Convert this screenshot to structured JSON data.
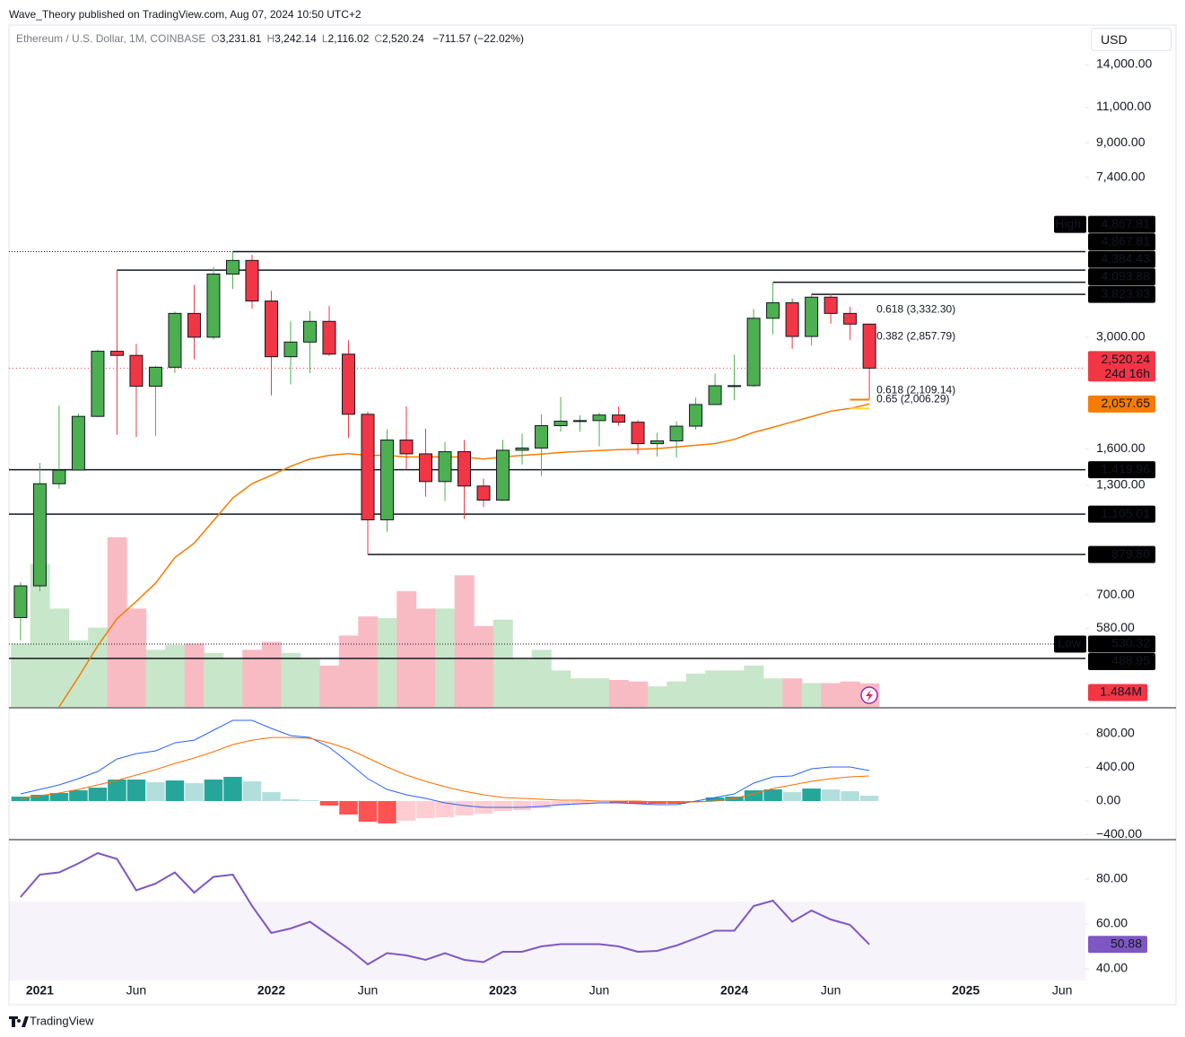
{
  "header": {
    "publisher": "Wave_Theory published on TradingView.com, Aug 07, 2024 10:50 UTC+2",
    "symbol": "Ethereum / U.S. Dollar, 1M, COINBASE",
    "ohlc": [
      {
        "key": "O",
        "value": "3,231.81"
      },
      {
        "key": "H",
        "value": "3,242.14"
      },
      {
        "key": "L",
        "value": "2,116.02"
      },
      {
        "key": "C",
        "value": "2,520.24"
      }
    ],
    "change": "−711.57 (−22.02%)",
    "currency": "USD",
    "brand": "TradingView"
  },
  "chart_data": [
    {
      "type": "candlestick",
      "log_scale": true,
      "grid": false,
      "xlim": [
        -0.6,
        55.2
      ],
      "xticks": [
        {
          "value": 1,
          "label": "2021"
        },
        {
          "value": 6,
          "label": "Jun"
        },
        {
          "value": 13,
          "label": "2022"
        },
        {
          "value": 18,
          "label": "Jun"
        },
        {
          "value": 25,
          "label": "2023"
        },
        {
          "value": 30,
          "label": "Jun"
        },
        {
          "value": 37,
          "label": "2024"
        },
        {
          "value": 42,
          "label": "Jun"
        },
        {
          "value": 49,
          "label": "2025"
        },
        {
          "value": 54,
          "label": "Jun"
        }
      ],
      "ylim": [
        372,
        17490
      ],
      "yticks": [
        {
          "value": 14000,
          "label": "14,000.00"
        },
        {
          "value": 11000,
          "label": "11,000.00"
        },
        {
          "value": 9000,
          "label": "9,000.00"
        },
        {
          "value": 7400,
          "label": "7,400.00"
        },
        {
          "value": 3000,
          "label": "3,000.00"
        },
        {
          "value": 1600,
          "label": "1,600.00"
        },
        {
          "value": 1300,
          "label": "1,300.00"
        },
        {
          "value": 700,
          "label": "700.00"
        },
        {
          "value": 580,
          "label": "580.00"
        }
      ],
      "up_color": "#4caf50",
      "down_color": "#f23645",
      "open": [
        616,
        737,
        1312,
        1417,
        1919,
        2772,
        2708,
        2275,
        2533,
        3433,
        3001,
        4288,
        4630,
        3682,
        2688,
        2920,
        3282,
        2727,
        1942,
        1070,
        1679,
        1553,
        1328,
        1572,
        1295,
        1196,
        1585,
        1605,
        1821,
        1868,
        1874,
        1934,
        1857,
        1645,
        1671,
        1816,
        2052,
        2282,
        2283,
        3340,
        3645,
        3014,
        3763,
        3433,
        3231.81
      ],
      "high": [
        752,
        1476,
        2042,
        1950,
        2798,
        4384.43,
        2890,
        2553,
        3470,
        4030,
        4460,
        4867.81,
        4780,
        3900,
        3285,
        3480,
        3580,
        2950,
        1972,
        1785,
        2030,
        1790,
        1660,
        1680,
        1350,
        1680,
        1740,
        1945,
        2140,
        1930,
        1960,
        2030,
        1880,
        1750,
        1865,
        2135,
        2445,
        2720,
        3520,
        4093.88,
        3730,
        3823.83,
        3830,
        3565,
        3242.14
      ],
      "low": [
        541,
        714,
        1275,
        1540,
        1911,
        1730,
        1707,
        1720,
        2452,
        2650,
        2960,
        3940,
        3530,
        2160,
        2300,
        2450,
        2700,
        1700,
        879.8,
        1000,
        1420,
        1220,
        1190,
        1075,
        1150,
        1190,
        1460,
        1370,
        1760,
        1760,
        1620,
        1820,
        1550,
        1530,
        1520,
        1780,
        2050,
        2100,
        2265,
        3050,
        2810,
        2860,
        3240,
        2955,
        2116.02
      ],
      "close": [
        737,
        1312,
        1417,
        1919,
        2772,
        2708,
        2275,
        2533,
        3433,
        3001,
        4288,
        4630,
        3682,
        2688,
        2920,
        3282,
        2727,
        1942,
        1070,
        1679,
        1553,
        1328,
        1572,
        1295,
        1196,
        1585,
        1605,
        1821,
        1868,
        1874,
        1934,
        1857,
        1645,
        1671,
        1816,
        2052,
        2282,
        2283,
        3340,
        3645,
        3014,
        3763,
        3433,
        3231.81,
        2520.24
      ],
      "ma": {
        "color": "#f57c00",
        "values": [
          null,
          null,
          372,
          440,
          525,
          612,
          675,
          748,
          864,
          938,
          1065,
          1210,
          1312,
          1376,
          1448,
          1508,
          1540,
          1555,
          1540,
          1540,
          1526,
          1526,
          1526,
          1526,
          1508,
          1526,
          1540,
          1550,
          1565,
          1575,
          1583,
          1590,
          1595,
          1600,
          1615,
          1630,
          1646,
          1685,
          1753,
          1804,
          1860,
          1916,
          1977,
          2007,
          2057.65
        ],
        "last_label": "2,057.65"
      },
      "volume": {
        "ylim": [
          0,
          43
        ],
        "up_color": "#c8e6c9",
        "down_color": "#f8bbc4",
        "values": [
          4.0,
          9.0,
          6.2,
          4.2,
          5.0,
          10.7,
          6.2,
          3.6,
          3.9,
          4.0,
          3.4,
          3.0,
          3.6,
          4.1,
          3.4,
          3.0,
          2.6,
          4.5,
          5.7,
          5.6,
          7.3,
          6.2,
          6.2,
          8.3,
          5.1,
          5.5,
          3.0,
          3.6,
          2.3,
          1.8,
          1.8,
          1.7,
          1.6,
          1.3,
          1.6,
          2.1,
          2.3,
          2.3,
          2.6,
          1.8,
          1.8,
          1.5,
          1.5,
          1.6,
          1.484
        ],
        "last_label": "1.484M"
      },
      "last": {
        "value": 2520.24,
        "label": "2,520.24",
        "countdown": "24d 16h",
        "color": "#f23645"
      },
      "high_mark": {
        "text": "High",
        "value": 4867.81,
        "label": "4,867.81"
      },
      "low_mark": {
        "text": "Low",
        "value": 530.32,
        "label": "530.32"
      },
      "levels": [
        {
          "value": 4867.81,
          "label": "4,867.81",
          "full": false
        },
        {
          "value": 4384.43,
          "label": "4,384.43",
          "full": false
        },
        {
          "value": 4093.88,
          "label": "4,093.88",
          "full": false
        },
        {
          "value": 3823.83,
          "label": "3,823.83",
          "full": false
        },
        {
          "value": 1419.96,
          "label": "1,419.96",
          "full": true
        },
        {
          "value": 1105.01,
          "label": "1,105.01",
          "full": true
        },
        {
          "value": 879.8,
          "label": "879.80",
          "full": false
        },
        {
          "value": 488.95,
          "label": "488.95",
          "full": true
        }
      ],
      "fib": [
        {
          "text": "0.618 (3,332.30)",
          "value": 3332.3,
          "color": "#f5a623",
          "line": false
        },
        {
          "text": "0.382 (2,857.79)",
          "value": 2857.79,
          "color": "#66bb6a",
          "line": false
        },
        {
          "text": "0.618 (2,109.14)",
          "value": 2109.14,
          "color": "#f57c00",
          "line": true
        },
        {
          "text": "0.65 (2,006.29)",
          "value": 2006.29,
          "color": "#fdd835",
          "line": true
        }
      ]
    },
    {
      "type": "macd",
      "ylim": [
        -448,
        1099
      ],
      "yticks": [
        {
          "value": 800,
          "label": "800.00"
        },
        {
          "value": 400,
          "label": "400.00"
        },
        {
          "value": 0,
          "label": "0.00"
        },
        {
          "value": -400,
          "label": "−400.00"
        }
      ],
      "macd_color": "#2962ff",
      "signal_color": "#ff6d00",
      "macd": [
        85,
        139,
        192,
        267,
        352,
        501,
        565,
        597,
        693,
        725,
        843,
        960,
        960,
        864,
        779,
        757,
        640,
        459,
        267,
        139,
        75,
        32,
        -21,
        -53,
        -75,
        -75,
        -75,
        -64,
        -43,
        -32,
        -21,
        -21,
        -32,
        -43,
        -43,
        0,
        43,
        85,
        213,
        288,
        299,
        384,
        405,
        405,
        363
      ],
      "signal": [
        32,
        64,
        96,
        139,
        192,
        245,
        309,
        373,
        448,
        512,
        587,
        672,
        725,
        757,
        757,
        747,
        693,
        619,
        512,
        405,
        309,
        235,
        171,
        117,
        75,
        43,
        32,
        21,
        11,
        11,
        0,
        0,
        0,
        -11,
        -11,
        -11,
        0,
        32,
        85,
        149,
        192,
        235,
        267,
        288,
        299
      ],
      "histogram": [
        53,
        75,
        96,
        128,
        160,
        256,
        256,
        224,
        245,
        213,
        256,
        288,
        235,
        107,
        22,
        10,
        -53,
        -160,
        -245,
        -266,
        -234,
        -203,
        -192,
        -170,
        -150,
        -118,
        -107,
        -85,
        -54,
        -43,
        -21,
        -21,
        -32,
        -32,
        -32,
        0,
        43,
        53,
        128,
        139,
        107,
        149,
        138,
        117,
        64
      ]
    },
    {
      "type": "rsi",
      "ylim": [
        34.8,
        97.2
      ],
      "yticks": [
        {
          "value": 80,
          "label": "80.00"
        },
        {
          "value": 60,
          "label": "60.00"
        },
        {
          "value": 40,
          "label": "40.00"
        }
      ],
      "band": [
        30,
        70
      ],
      "color": "#7e57c2",
      "values": [
        72,
        82,
        83,
        87,
        91.6,
        89,
        75,
        78,
        83,
        74,
        81,
        82,
        68,
        56,
        58,
        61,
        55,
        49,
        42,
        47,
        46,
        44,
        47,
        44,
        43,
        47.6,
        47.6,
        50,
        51,
        51,
        51,
        50,
        47.6,
        48,
        50.4,
        53.6,
        57,
        57,
        68,
        70.4,
        61,
        66,
        62,
        59.6,
        50.88
      ],
      "last_label": "50.88"
    }
  ]
}
